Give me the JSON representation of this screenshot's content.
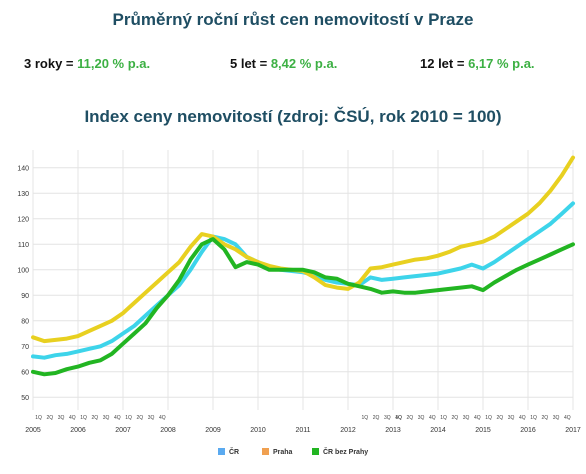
{
  "title": "Průměrný roční růst cen nemovitostí v Praze",
  "stats": [
    {
      "label": "3 roky = ",
      "value": "11,20 % p.a."
    },
    {
      "label": "5 let = ",
      "value": "8,42 % p.a."
    },
    {
      "label": "12 let = ",
      "value": "6,17 % p.a."
    }
  ],
  "chart_data": {
    "type": "line",
    "title": "Index ceny nemovitostí (zdroj: ČSÚ, rok 2010 = 100)",
    "xlabel": "",
    "ylabel": "",
    "xlim": [
      2005,
      2017
    ],
    "ylim": [
      45,
      145
    ],
    "yticks": [
      50,
      60,
      70,
      80,
      90,
      100,
      110,
      120,
      130,
      140
    ],
    "year_ticks": [
      "2005",
      "2006",
      "2007",
      "2008",
      "2009",
      "2010",
      "2011",
      "2012",
      "2013",
      "2014",
      "2015",
      "2016",
      "2017"
    ],
    "quarter_labels": [
      "1Q",
      "2Q",
      "3Q",
      "4Q"
    ],
    "quarter_years": [
      2005.0,
      2006.0,
      2007.0,
      2012.25,
      2013.0,
      2014.0,
      2015.0,
      2016.0
    ],
    "grid": true,
    "legend_position": "bottom",
    "colors": {
      "line1": "#5aaaf0",
      "line2": "#f0a050",
      "line3": "#22b522"
    },
    "series": [
      {
        "name": "ČR",
        "color": "#3dd4ea",
        "legend_color": "#5aaaf0",
        "points": [
          [
            2005.0,
            66
          ],
          [
            2005.25,
            65.5
          ],
          [
            2005.5,
            66.5
          ],
          [
            2005.75,
            67
          ],
          [
            2006.0,
            68
          ],
          [
            2006.25,
            69
          ],
          [
            2006.5,
            70
          ],
          [
            2006.75,
            72
          ],
          [
            2007.0,
            75
          ],
          [
            2007.25,
            78
          ],
          [
            2007.5,
            82
          ],
          [
            2007.75,
            86
          ],
          [
            2008.0,
            90
          ],
          [
            2008.25,
            94
          ],
          [
            2008.5,
            100
          ],
          [
            2008.75,
            107
          ],
          [
            2009.0,
            113
          ],
          [
            2009.25,
            112
          ],
          [
            2009.5,
            110
          ],
          [
            2009.75,
            105
          ],
          [
            2010.0,
            103
          ],
          [
            2010.25,
            101
          ],
          [
            2010.5,
            100
          ],
          [
            2010.75,
            99.5
          ],
          [
            2011.0,
            99
          ],
          [
            2011.25,
            98
          ],
          [
            2011.5,
            96
          ],
          [
            2011.75,
            95
          ],
          [
            2012.0,
            94.5
          ],
          [
            2012.25,
            94
          ],
          [
            2012.5,
            97
          ],
          [
            2012.75,
            96
          ],
          [
            2013.0,
            96.5
          ],
          [
            2013.25,
            97
          ],
          [
            2013.5,
            97.5
          ],
          [
            2013.75,
            98
          ],
          [
            2014.0,
            98.5
          ],
          [
            2014.25,
            99.5
          ],
          [
            2014.5,
            100.5
          ],
          [
            2014.75,
            102
          ],
          [
            2015.0,
            100.5
          ],
          [
            2015.25,
            103
          ],
          [
            2015.5,
            106
          ],
          [
            2015.75,
            109
          ],
          [
            2016.0,
            112
          ],
          [
            2016.25,
            115
          ],
          [
            2016.5,
            118
          ],
          [
            2016.75,
            122
          ],
          [
            2017.0,
            126
          ]
        ]
      },
      {
        "name": "Praha",
        "color": "#e8d020",
        "legend_color": "#f0a050",
        "points": [
          [
            2005.0,
            73.5
          ],
          [
            2005.25,
            72
          ],
          [
            2005.5,
            72.5
          ],
          [
            2005.75,
            73
          ],
          [
            2006.0,
            74
          ],
          [
            2006.25,
            76
          ],
          [
            2006.5,
            78
          ],
          [
            2006.75,
            80
          ],
          [
            2007.0,
            83
          ],
          [
            2007.25,
            87
          ],
          [
            2007.5,
            91
          ],
          [
            2007.75,
            95
          ],
          [
            2008.0,
            99
          ],
          [
            2008.25,
            103
          ],
          [
            2008.5,
            109
          ],
          [
            2008.75,
            114
          ],
          [
            2009.0,
            113
          ],
          [
            2009.25,
            110
          ],
          [
            2009.5,
            108
          ],
          [
            2009.75,
            105
          ],
          [
            2010.0,
            103
          ],
          [
            2010.25,
            101.5
          ],
          [
            2010.5,
            100.5
          ],
          [
            2010.75,
            100
          ],
          [
            2011.0,
            99.5
          ],
          [
            2011.25,
            97
          ],
          [
            2011.5,
            94
          ],
          [
            2011.75,
            93
          ],
          [
            2012.0,
            92.5
          ],
          [
            2012.25,
            95
          ],
          [
            2012.5,
            100.5
          ],
          [
            2012.75,
            101
          ],
          [
            2013.0,
            102
          ],
          [
            2013.25,
            103
          ],
          [
            2013.5,
            104
          ],
          [
            2013.75,
            104.5
          ],
          [
            2014.0,
            105.5
          ],
          [
            2014.25,
            107
          ],
          [
            2014.5,
            109
          ],
          [
            2014.75,
            110
          ],
          [
            2015.0,
            111
          ],
          [
            2015.25,
            113
          ],
          [
            2015.5,
            116
          ],
          [
            2015.75,
            119
          ],
          [
            2016.0,
            122
          ],
          [
            2016.25,
            126
          ],
          [
            2016.5,
            131
          ],
          [
            2016.75,
            137
          ],
          [
            2017.0,
            144
          ]
        ]
      },
      {
        "name": "ČR bez Prahy",
        "color": "#22b522",
        "legend_color": "#22b522",
        "points": [
          [
            2005.0,
            60
          ],
          [
            2005.25,
            59
          ],
          [
            2005.5,
            59.5
          ],
          [
            2005.75,
            61
          ],
          [
            2006.0,
            62
          ],
          [
            2006.25,
            63.5
          ],
          [
            2006.5,
            64.5
          ],
          [
            2006.75,
            67
          ],
          [
            2007.0,
            71
          ],
          [
            2007.25,
            75
          ],
          [
            2007.5,
            79
          ],
          [
            2007.75,
            85
          ],
          [
            2008.0,
            90
          ],
          [
            2008.25,
            96
          ],
          [
            2008.5,
            104
          ],
          [
            2008.75,
            110
          ],
          [
            2009.0,
            112
          ],
          [
            2009.25,
            108
          ],
          [
            2009.5,
            101
          ],
          [
            2009.75,
            103
          ],
          [
            2010.0,
            102
          ],
          [
            2010.25,
            100
          ],
          [
            2010.5,
            100
          ],
          [
            2010.75,
            100
          ],
          [
            2011.0,
            100
          ],
          [
            2011.25,
            99
          ],
          [
            2011.5,
            97
          ],
          [
            2011.75,
            96.5
          ],
          [
            2012.0,
            94.5
          ],
          [
            2012.25,
            93.5
          ],
          [
            2012.5,
            92.5
          ],
          [
            2012.75,
            91
          ],
          [
            2013.0,
            91.5
          ],
          [
            2013.25,
            91
          ],
          [
            2013.5,
            91
          ],
          [
            2013.75,
            91.5
          ],
          [
            2014.0,
            92
          ],
          [
            2014.25,
            92.5
          ],
          [
            2014.5,
            93
          ],
          [
            2014.75,
            93.5
          ],
          [
            2015.0,
            92
          ],
          [
            2015.25,
            95
          ],
          [
            2015.5,
            97.5
          ],
          [
            2015.75,
            100
          ],
          [
            2016.0,
            102
          ],
          [
            2016.25,
            104
          ],
          [
            2016.5,
            106
          ],
          [
            2016.75,
            108
          ],
          [
            2017.0,
            110
          ]
        ]
      }
    ]
  }
}
